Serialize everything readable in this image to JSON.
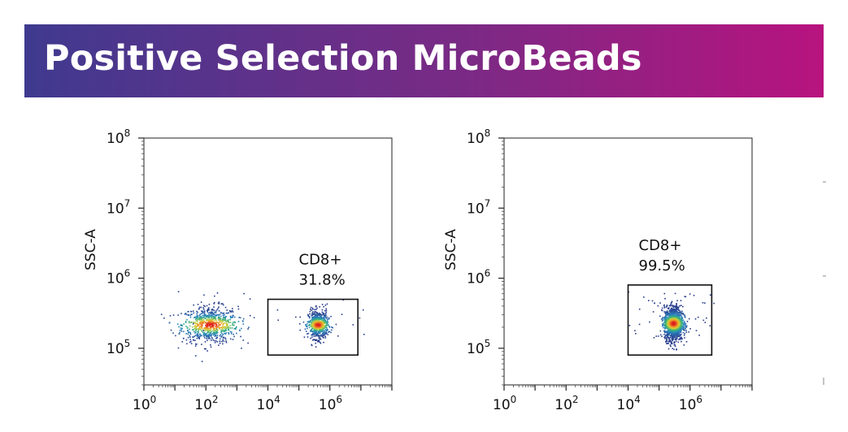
{
  "header": {
    "title": "Positive Selection MicroBeads",
    "gradient_colors": [
      "#3f3a8f",
      "#b8137f"
    ]
  },
  "chart_data": [
    {
      "type": "scatter",
      "title": "",
      "xlabel": "",
      "ylabel": "SSC-A",
      "x_scale": "log",
      "y_scale": "log",
      "xlim": [
        1,
        100000000
      ],
      "ylim": [
        30000,
        100000000
      ],
      "x_tick_labels": [
        {
          "base": "10",
          "exp": "0"
        },
        {
          "base": "10",
          "exp": "2"
        },
        {
          "base": "10",
          "exp": "4"
        },
        {
          "base": "10",
          "exp": "6"
        }
      ],
      "y_tick_labels": [
        {
          "base": "10",
          "exp": "5"
        },
        {
          "base": "10",
          "exp": "6"
        },
        {
          "base": "10",
          "exp": "7"
        },
        {
          "base": "10",
          "exp": "8"
        }
      ],
      "gate": {
        "x": [
          10000,
          8000000
        ],
        "y": [
          80000,
          500000
        ],
        "label": "CD8+",
        "percent": "31.8%"
      },
      "populations": [
        {
          "x_center": 130,
          "y_center": 220000,
          "x_spread": 1.0,
          "y_spread": 0.13,
          "fraction": 0.55
        },
        {
          "x_center": 400000,
          "y_center": 220000,
          "x_spread": 0.35,
          "y_spread": 0.1,
          "fraction": 0.45
        }
      ]
    },
    {
      "type": "scatter",
      "title": "",
      "xlabel": "",
      "ylabel": "SSC-A",
      "x_scale": "log",
      "y_scale": "log",
      "xlim": [
        1,
        100000000
      ],
      "ylim": [
        30000,
        100000000
      ],
      "x_tick_labels": [
        {
          "base": "10",
          "exp": "0"
        },
        {
          "base": "10",
          "exp": "2"
        },
        {
          "base": "10",
          "exp": "4"
        },
        {
          "base": "10",
          "exp": "6"
        }
      ],
      "y_tick_labels": [
        {
          "base": "10",
          "exp": "5"
        },
        {
          "base": "10",
          "exp": "6"
        },
        {
          "base": "10",
          "exp": "7"
        },
        {
          "base": "10",
          "exp": "8"
        }
      ],
      "gate": {
        "x": [
          10000,
          5000000
        ],
        "y": [
          80000,
          800000
        ],
        "label": "CD8+",
        "percent": "99.5%"
      },
      "populations": [
        {
          "x_center": 280000,
          "y_center": 230000,
          "x_spread": 0.33,
          "y_spread": 0.12,
          "fraction": 1.0
        }
      ]
    }
  ]
}
